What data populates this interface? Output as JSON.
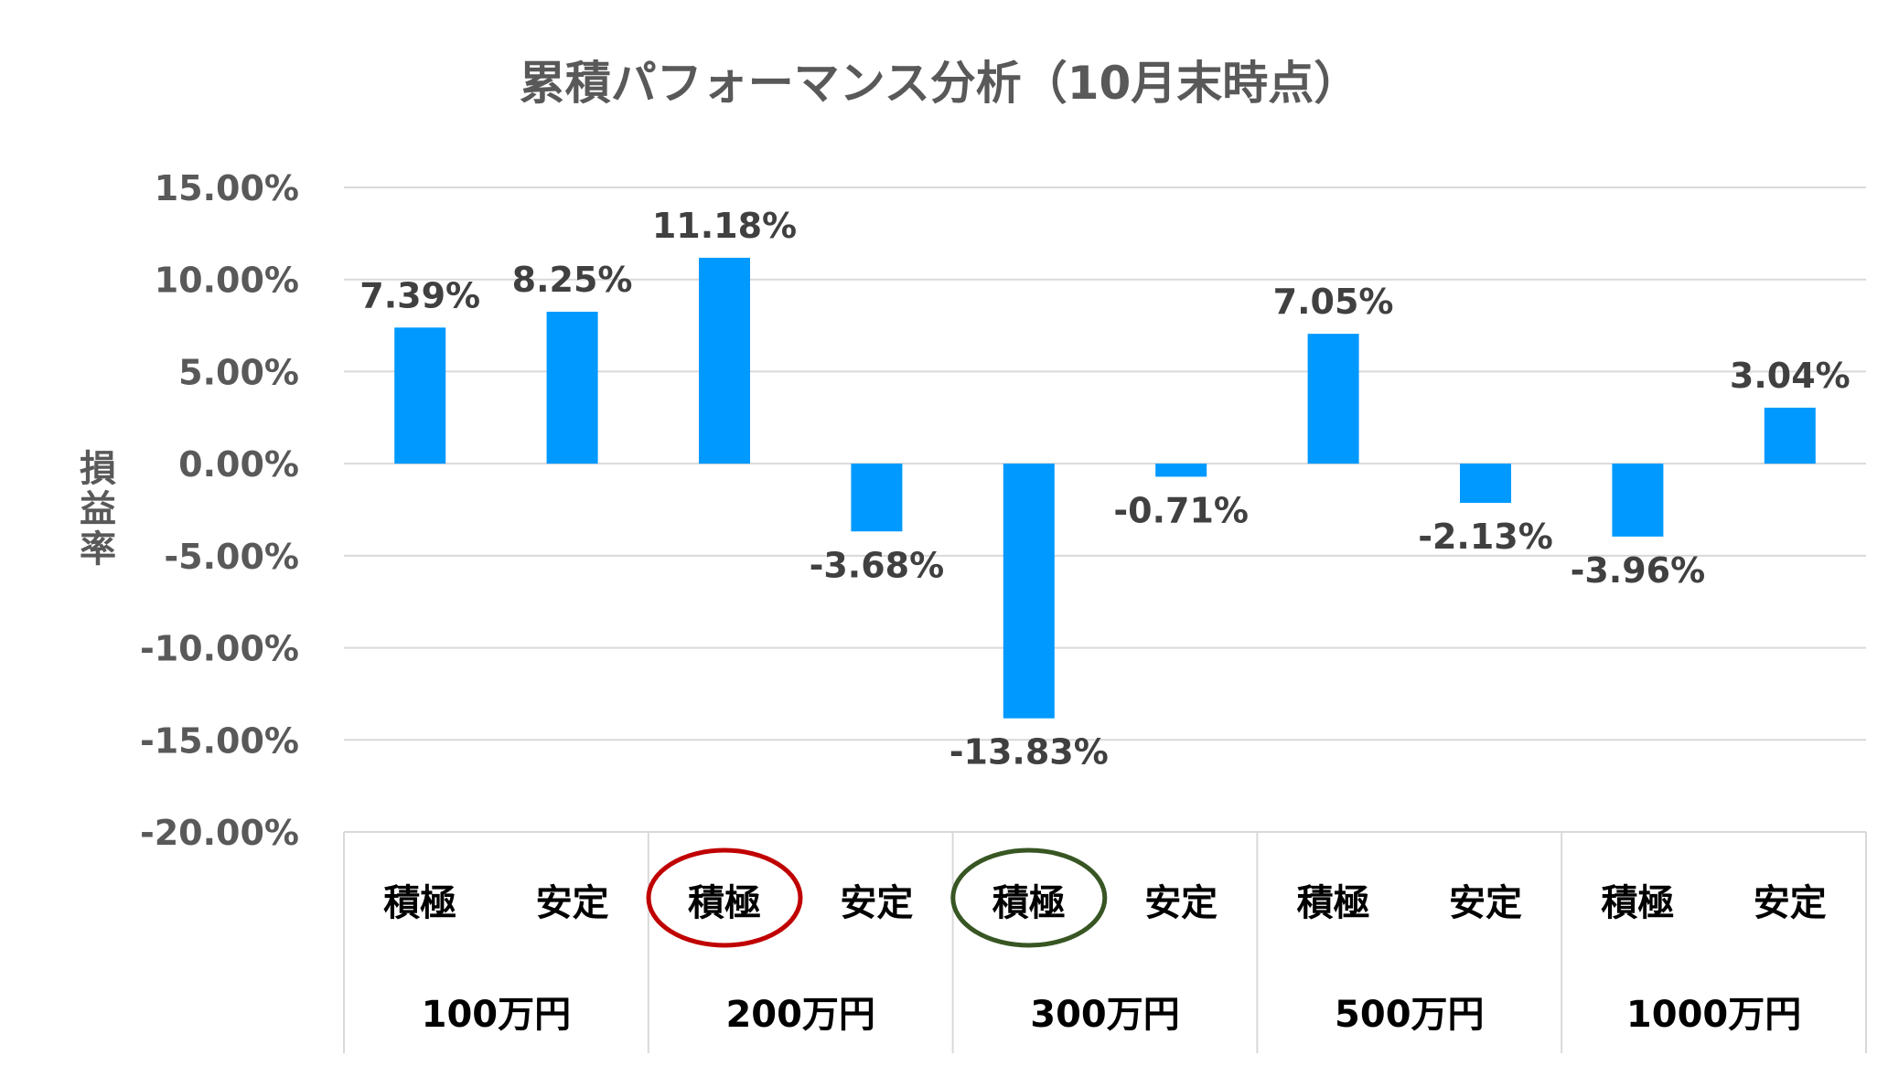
{
  "chart_data": {
    "type": "bar",
    "title": "累積パフォーマンス分析（10月末時点）",
    "xlabel": "",
    "ylabel": "損益率",
    "ylim": [
      -0.2,
      0.15
    ],
    "yticks": [
      "15.00%",
      "10.00%",
      "5.00%",
      "0.00%",
      "-5.00%",
      "-10.00%",
      "-15.00%",
      "-20.00%"
    ],
    "ytick_values": [
      0.15,
      0.1,
      0.05,
      0,
      -0.05,
      -0.1,
      -0.15,
      -0.2
    ],
    "grid": true,
    "groups": [
      "100万円",
      "200万円",
      "300万円",
      "500万円",
      "1000万円"
    ],
    "categories": [
      "積極",
      "安定",
      "積極",
      "安定",
      "積極",
      "安定",
      "積極",
      "安定",
      "積極",
      "安定"
    ],
    "values": [
      0.0739,
      0.0825,
      0.1118,
      -0.0368,
      -0.1383,
      -0.0071,
      0.0705,
      -0.0213,
      -0.0396,
      0.0304
    ],
    "data_labels": [
      "7.39%",
      "8.25%",
      "11.18%",
      "-3.68%",
      "-13.83%",
      "-0.71%",
      "7.05%",
      "-2.13%",
      "-3.96%",
      "3.04%"
    ],
    "bar_color": "#0099FF",
    "annotations": [
      {
        "type": "circle",
        "category_index": 2,
        "color": "#C00000"
      },
      {
        "type": "circle",
        "category_index": 4,
        "color": "#375623"
      }
    ]
  }
}
